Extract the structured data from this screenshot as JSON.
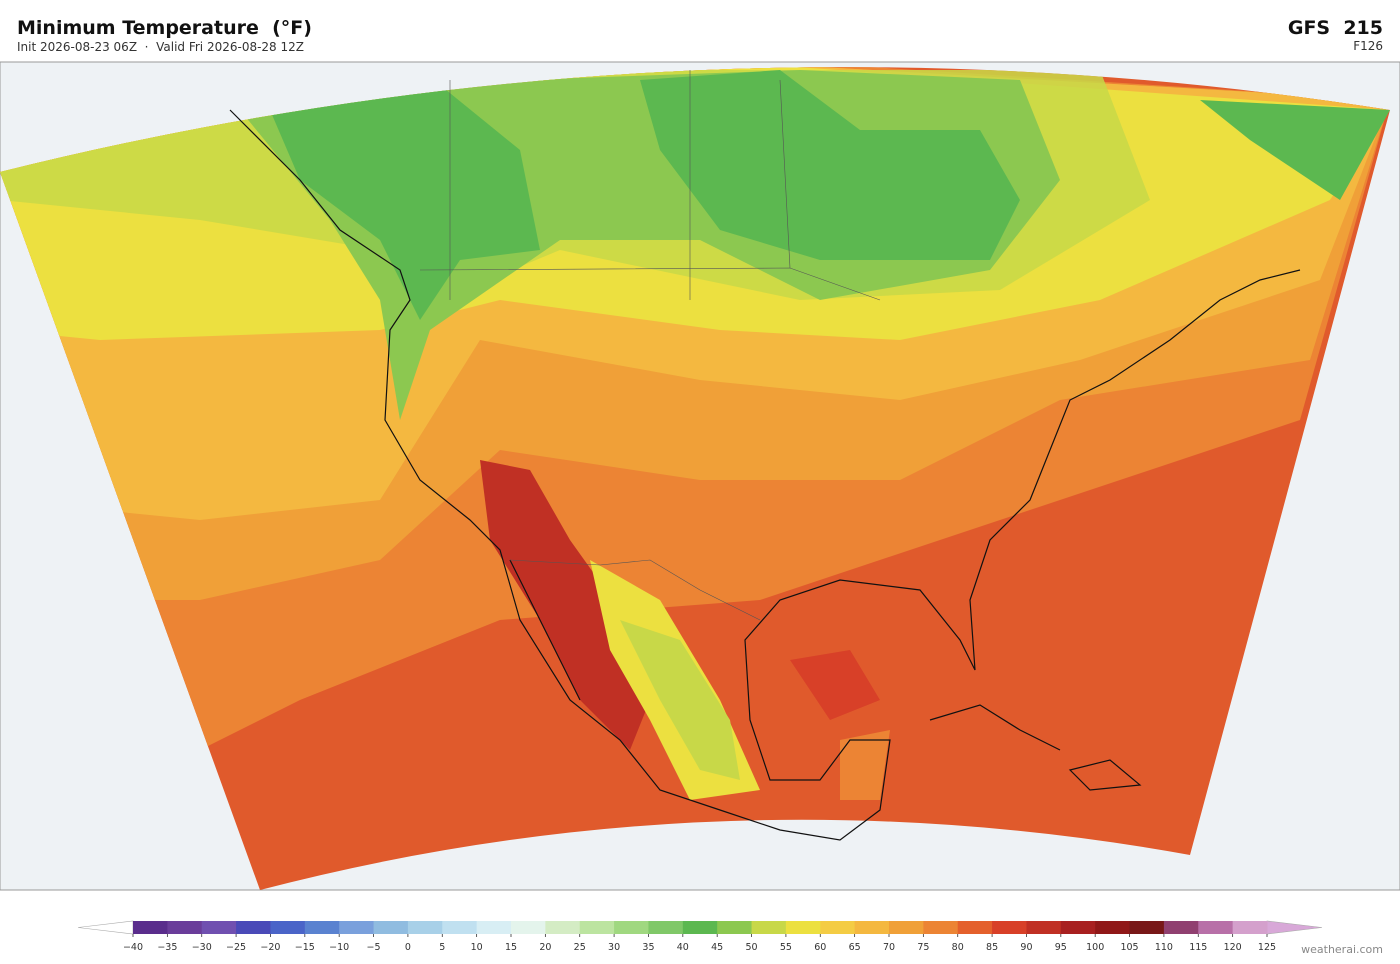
{
  "header": {
    "title": "Minimum Temperature  (°F)",
    "subtitle": "Init 2026-08-23 06Z  ·  Valid Fri 2026-08-28 12Z",
    "model": "GFS  215",
    "forecast_hour": "F126"
  },
  "colorbar": {
    "ticks": [
      "−40",
      "−35",
      "−30",
      "−25",
      "−20",
      "−15",
      "−10",
      "−5",
      "0",
      "5",
      "10",
      "15",
      "20",
      "25",
      "30",
      "35",
      "40",
      "45",
      "50",
      "55",
      "60",
      "65",
      "70",
      "75",
      "80",
      "85",
      "90",
      "95",
      "100",
      "105",
      "110",
      "115",
      "120",
      "125"
    ],
    "colors": [
      "#5a2d8c",
      "#6a3d9a",
      "#7050b0",
      "#4a4ab8",
      "#4a64c8",
      "#5a82d0",
      "#7aa0dc",
      "#90bce0",
      "#a8d0e8",
      "#c0e0f0",
      "#d8eef4",
      "#e4f4ec",
      "#d4ecc4",
      "#bce4a0",
      "#a0d880",
      "#80c868",
      "#5cb850",
      "#8cc850",
      "#c8d848",
      "#ece040",
      "#f4cc44",
      "#f4b840",
      "#f0a038",
      "#ec8434",
      "#e4602c",
      "#d84028",
      "#c03024",
      "#a82020",
      "#901818",
      "#781818",
      "#904070",
      "#b870a8",
      "#d4a0cc"
    ],
    "under_color": "#ffffff",
    "over_color": "#d8a8d8"
  },
  "footer": {
    "credit": "weatherai.com"
  }
}
